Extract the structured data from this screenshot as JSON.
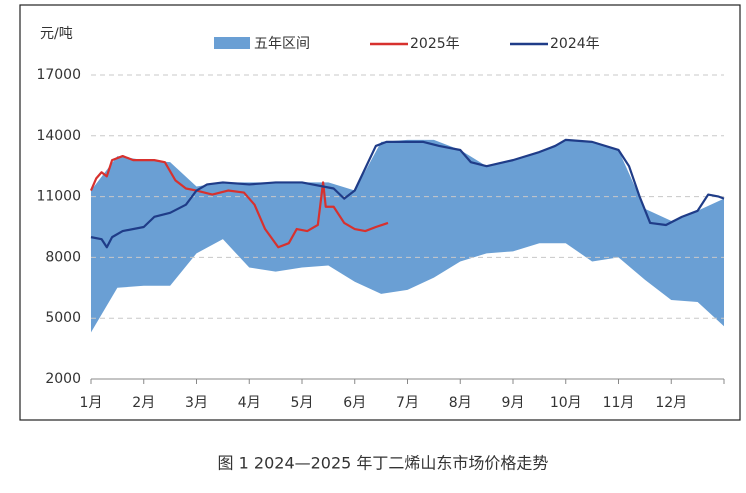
{
  "chart_data": {
    "type": "line",
    "caption": "图 1  2024—2025 年丁二烯山东市场价格走势",
    "y_label": "元/吨",
    "xlim": [
      0,
      12
    ],
    "xticks": [
      {
        "value": 0,
        "label": "1月"
      },
      {
        "value": 1,
        "label": "2月"
      },
      {
        "value": 2,
        "label": "3月"
      },
      {
        "value": 3,
        "label": "4月"
      },
      {
        "value": 4,
        "label": "5月"
      },
      {
        "value": 5,
        "label": "6月"
      },
      {
        "value": 6,
        "label": "7月"
      },
      {
        "value": 7,
        "label": "8月"
      },
      {
        "value": 8,
        "label": "9月"
      },
      {
        "value": 9,
        "label": "10月"
      },
      {
        "value": 10,
        "label": "11月"
      },
      {
        "value": 11,
        "label": "12月"
      }
    ],
    "ylim": [
      2000,
      17000
    ],
    "yticks": [
      2000,
      5000,
      8000,
      11000,
      14000,
      17000
    ],
    "grid": true,
    "band": {
      "name": "五年区间",
      "color": "#6a9fd4",
      "x": [
        0,
        0.5,
        1,
        1.5,
        2,
        2.5,
        3,
        3.5,
        4,
        4.5,
        5,
        5.5,
        6,
        6.5,
        7,
        7.5,
        8,
        8.5,
        9,
        9.5,
        10,
        10.5,
        11,
        11.5,
        12
      ],
      "upper": [
        11300,
        13000,
        12800,
        12700,
        11500,
        11700,
        11700,
        11700,
        11700,
        11700,
        11300,
        13700,
        13800,
        13800,
        13300,
        12500,
        12800,
        13200,
        13800,
        13700,
        13300,
        10400,
        9800,
        10300,
        10900
      ],
      "lower": [
        4300,
        6500,
        6600,
        6600,
        8200,
        8900,
        7500,
        7300,
        7500,
        7600,
        6800,
        6200,
        6400,
        7000,
        7800,
        8200,
        8300,
        8700,
        8700,
        7800,
        8000,
        6900,
        5900,
        5800,
        4600
      ]
    },
    "series": [
      {
        "name": "2025年",
        "color": "#d7312e",
        "x": [
          0,
          0.1,
          0.2,
          0.3,
          0.4,
          0.6,
          0.8,
          1.2,
          1.4,
          1.6,
          1.8,
          2.0,
          2.3,
          2.6,
          2.9,
          3.1,
          3.3,
          3.55,
          3.75,
          3.9,
          4.1,
          4.3,
          4.4,
          4.45,
          4.6,
          4.8,
          5.0,
          5.2,
          5.4,
          5.63
        ],
        "values": [
          11300,
          11900,
          12200,
          12000,
          12800,
          13000,
          12800,
          12800,
          12700,
          11800,
          11400,
          11300,
          11100,
          11300,
          11200,
          10600,
          9400,
          8500,
          8700,
          9400,
          9300,
          9600,
          11700,
          10500,
          10500,
          9700,
          9400,
          9300,
          9500,
          9700
        ]
      },
      {
        "name": "2024年",
        "color": "#1f3c88",
        "x": [
          0,
          0.2,
          0.3,
          0.4,
          0.6,
          1.0,
          1.2,
          1.5,
          1.8,
          2.0,
          2.2,
          2.5,
          3.0,
          3.5,
          4.0,
          4.6,
          4.8,
          5.0,
          5.2,
          5.4,
          5.6,
          6.0,
          6.3,
          6.6,
          7.0,
          7.2,
          7.5,
          8.0,
          8.5,
          8.8,
          9.0,
          9.5,
          10.0,
          10.2,
          10.4,
          10.6,
          10.9,
          11.2,
          11.5,
          11.7,
          11.9,
          12
        ],
        "values": [
          9000,
          8900,
          8500,
          9000,
          9300,
          9500,
          10000,
          10200,
          10600,
          11300,
          11600,
          11700,
          11600,
          11700,
          11700,
          11400,
          10900,
          11300,
          12400,
          13500,
          13700,
          13700,
          13700,
          13500,
          13300,
          12700,
          12500,
          12800,
          13200,
          13500,
          13800,
          13700,
          13300,
          12500,
          11000,
          9700,
          9600,
          10000,
          10300,
          11100,
          11000,
          10900
        ]
      }
    ]
  }
}
